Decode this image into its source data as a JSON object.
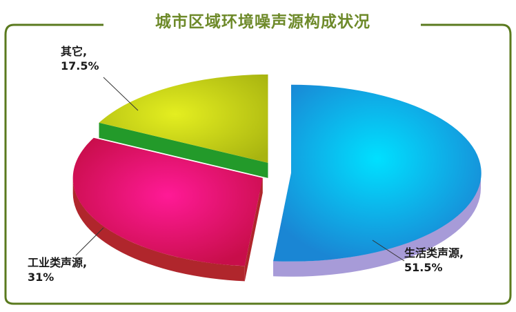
{
  "chart_data": {
    "type": "pie",
    "title": "城市区域环境噪声源构成状况",
    "slices": [
      {
        "name": "生活类声源,",
        "value": 51.5,
        "value_label": "51.5%",
        "color": "#2aa8e6"
      },
      {
        "name": "工业类声源,",
        "value": 31,
        "value_label": "31%",
        "color": "#e0145c"
      },
      {
        "name": "其它,",
        "value": 17.5,
        "value_label": "17.5%",
        "color": "#b8c41a"
      }
    ],
    "frame_color": "#5a7a1e"
  }
}
